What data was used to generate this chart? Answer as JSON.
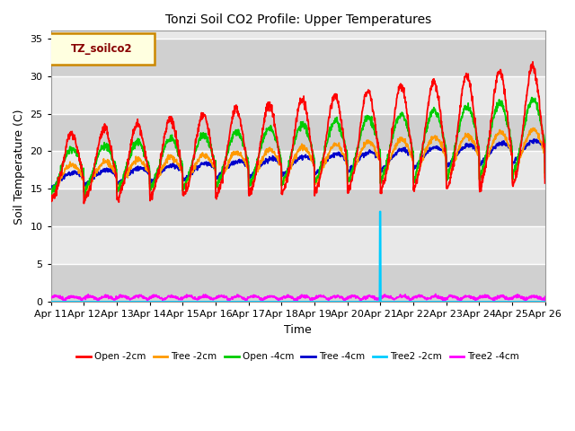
{
  "title": "Tonzi Soil CO2 Profile: Upper Temperatures",
  "xlabel": "Time",
  "ylabel": "Soil Temperature (C)",
  "ylim": [
    0,
    36
  ],
  "yticks": [
    0,
    5,
    10,
    15,
    20,
    25,
    30,
    35
  ],
  "date_labels": [
    "Apr 11",
    "Apr 12",
    "Apr 13",
    "Apr 14",
    "Apr 15",
    "Apr 16",
    "Apr 17",
    "Apr 18",
    "Apr 19",
    "Apr 20",
    "Apr 21",
    "Apr 22",
    "Apr 23",
    "Apr 24",
    "Apr 25",
    "Apr 26"
  ],
  "legend_label": "TZ_soilco2",
  "series_names": [
    "Open -2cm",
    "Tree -2cm",
    "Open -4cm",
    "Tree -4cm",
    "Tree2 -2cm",
    "Tree2 -4cm"
  ],
  "series_colors": [
    "#ff0000",
    "#ff9900",
    "#00cc00",
    "#0000cc",
    "#00ccff",
    "#ff00ff"
  ],
  "bg_color": "#ffffff",
  "plot_bg_color_light": "#e8e8e8",
  "plot_bg_color_dark": "#d0d0d0",
  "n_days": 15.0,
  "n_points": 1500
}
